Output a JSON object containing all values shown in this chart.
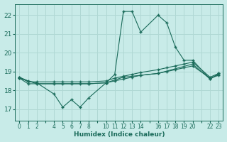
{
  "xlabel": "Humidex (Indice chaleur)",
  "bg_color": "#c8ebe8",
  "grid_color": "#b0d8d4",
  "line_color": "#1a6b5a",
  "xlim": [
    -0.5,
    23.5
  ],
  "ylim": [
    16.4,
    22.6
  ],
  "yticks": [
    17,
    18,
    19,
    20,
    21,
    22
  ],
  "xtick_positions": [
    0,
    1,
    2,
    3,
    4,
    5,
    6,
    7,
    8,
    9,
    10,
    11,
    12,
    13,
    14,
    15,
    16,
    17,
    18,
    19,
    20,
    21,
    22,
    23
  ],
  "xtick_labels": [
    "0",
    "1",
    "2",
    "",
    "4",
    "5",
    "6",
    "7",
    "8",
    "",
    "10",
    "11",
    "12",
    "13",
    "14",
    "",
    "16",
    "17",
    "18",
    "19",
    "20",
    "",
    "22",
    "23"
  ],
  "line1_x": [
    0,
    1,
    2,
    4,
    5,
    6,
    7,
    8,
    10,
    11,
    12,
    13,
    14,
    16,
    17,
    18,
    19,
    20,
    22,
    23
  ],
  "line1_y": [
    18.7,
    18.5,
    18.4,
    17.8,
    17.1,
    17.5,
    17.1,
    17.6,
    18.4,
    18.85,
    22.2,
    22.2,
    21.1,
    22.0,
    21.6,
    20.3,
    19.6,
    19.6,
    18.6,
    18.9
  ],
  "line2_x": [
    0,
    1,
    2,
    4,
    5,
    6,
    7,
    8,
    10,
    11,
    12,
    13,
    14,
    16,
    17,
    18,
    19,
    20,
    22,
    23
  ],
  "line2_y": [
    18.7,
    18.45,
    18.45,
    18.45,
    18.45,
    18.45,
    18.45,
    18.45,
    18.5,
    18.65,
    18.75,
    18.85,
    18.95,
    19.1,
    19.2,
    19.3,
    19.4,
    19.5,
    18.7,
    18.9
  ],
  "line3_x": [
    0,
    1,
    2,
    4,
    5,
    6,
    7,
    8,
    10,
    11,
    12,
    13,
    14,
    16,
    17,
    18,
    19,
    20,
    22,
    23
  ],
  "line3_y": [
    18.65,
    18.35,
    18.35,
    18.35,
    18.35,
    18.35,
    18.35,
    18.35,
    18.4,
    18.5,
    18.6,
    18.7,
    18.8,
    18.9,
    19.0,
    19.1,
    19.2,
    19.3,
    18.65,
    18.8
  ],
  "line4_x": [
    0,
    2,
    8,
    10,
    12,
    14,
    16,
    20,
    22,
    23
  ],
  "line4_y": [
    18.65,
    18.35,
    18.35,
    18.4,
    18.7,
    18.8,
    18.9,
    19.4,
    18.6,
    18.85
  ]
}
